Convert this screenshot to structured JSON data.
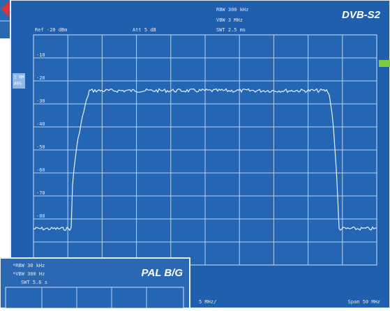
{
  "main": {
    "title": "DVB-S2",
    "header": [
      "RBW 300 kHz",
      "VBW 3 MHz",
      "SWT 2.5 ms"
    ],
    "ref": "Ref -20 dBm",
    "att": "Att 5 dB",
    "side": [
      "1 RM",
      "AVG"
    ],
    "ylabels": [
      "-10",
      "-20",
      "-30",
      "-40",
      "-50",
      "-60",
      "-70",
      "-80"
    ],
    "footer": [
      "5 MHz/",
      "Span 50 MHz"
    ]
  },
  "inset": {
    "title": "PAL B/G",
    "header": [
      "*RBW 30 kHz",
      "*VBW 300 Hz",
      "SWT 5.6 s"
    ]
  }
}
